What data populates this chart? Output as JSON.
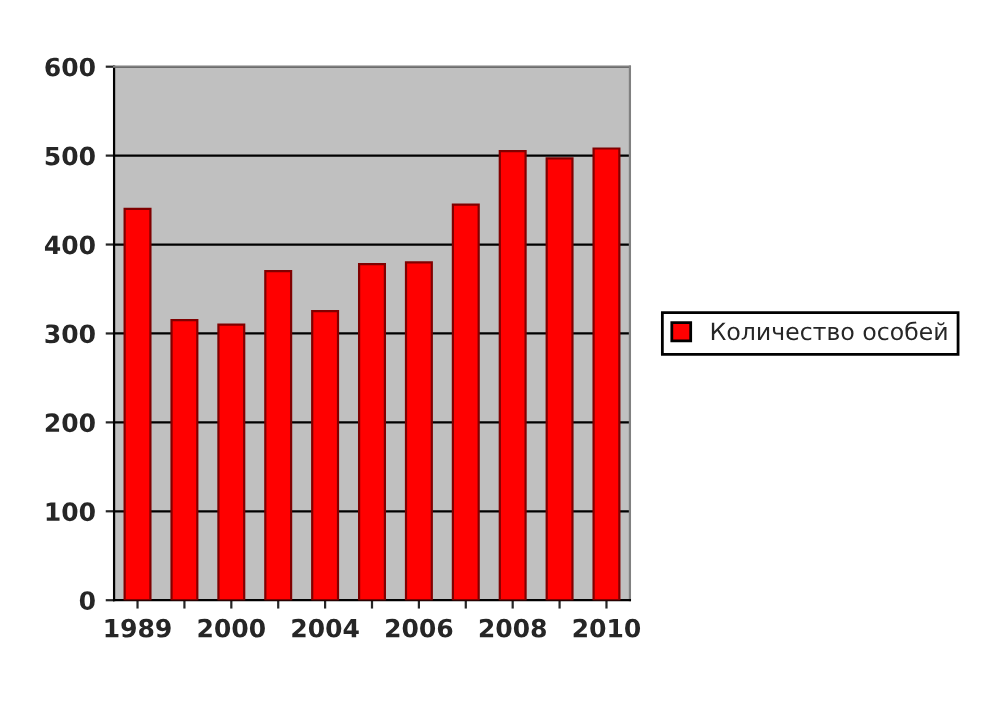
{
  "chart_data": {
    "type": "bar",
    "categories": [
      "1989",
      null,
      "2000",
      null,
      "2004",
      null,
      "2006",
      null,
      "2008",
      null,
      "2010"
    ],
    "series": [
      {
        "name": "Количество особей",
        "color": "#ff0000",
        "values": [
          440,
          315,
          310,
          370,
          325,
          378,
          380,
          445,
          505,
          497,
          508
        ]
      }
    ],
    "ylim": [
      0,
      600
    ],
    "yticks": [
      0,
      100,
      200,
      300,
      400,
      500,
      600
    ],
    "grid": "y",
    "legend": "right"
  }
}
